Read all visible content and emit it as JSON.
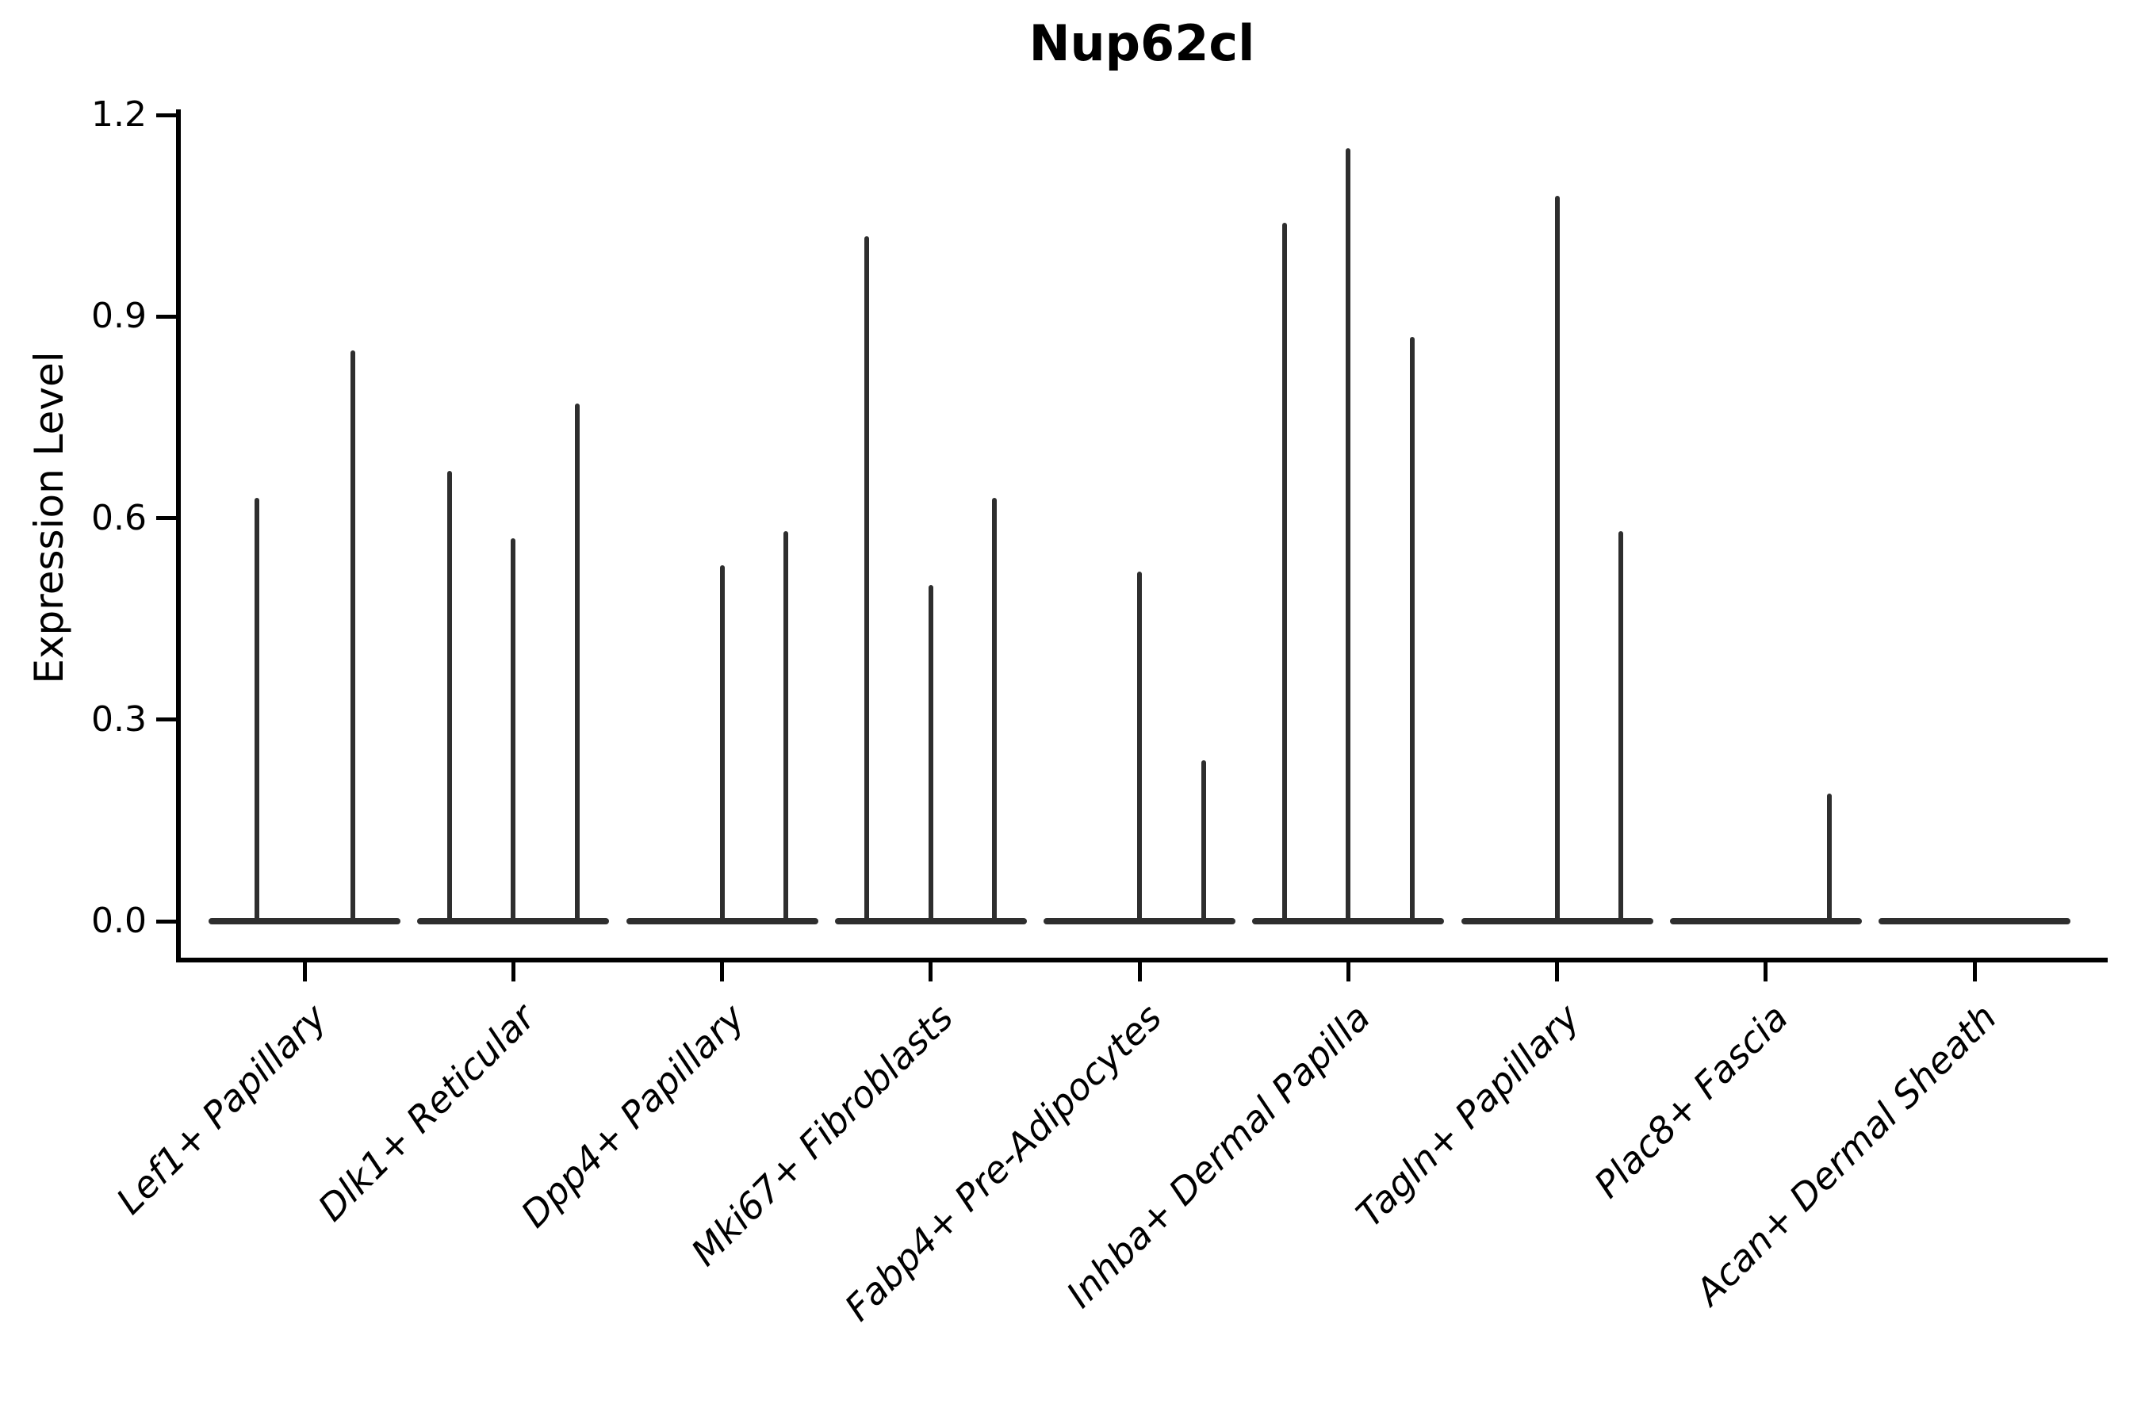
{
  "title": "Nup62cl",
  "axes": {
    "ylabel": "Expression Level",
    "xlabel": ""
  },
  "colors": {
    "axis": "#000000",
    "violin": "#2e2e2e",
    "background": "#ffffff"
  },
  "chart_data": {
    "type": "violin",
    "title": "Nup62cl",
    "ylabel": "Expression Level",
    "xlabel": "",
    "ylim": [
      0,
      1.2
    ],
    "grid": false,
    "legend": null,
    "ytick_labels": [
      "0.0",
      "0.3",
      "0.6",
      "0.9",
      "1.2"
    ],
    "ytick_values": [
      0.0,
      0.3,
      0.6,
      0.9,
      1.2
    ],
    "categories": [
      "Lef1+ Papillary",
      "Dlk1+ Reticular",
      "Dpp4+ Papillary",
      "Mki67+ Fibroblasts",
      "Fabp4+ Pre-Adipocytes",
      "Inhba+ Dermal Papilla",
      "Tagln+ Papillary",
      "Plac8+ Fascia",
      "Acan+ Dermal Sheath"
    ],
    "violins": [
      {
        "category": "Lef1+ Papillary",
        "sub_violin_max_expression": [
          0.63,
          0.85
        ]
      },
      {
        "category": "Dlk1+ Reticular",
        "sub_violin_max_expression": [
          0.67,
          0.57,
          0.77
        ]
      },
      {
        "category": "Dpp4+ Papillary",
        "sub_violin_max_expression": [
          0.0,
          0.53,
          0.58
        ]
      },
      {
        "category": "Mki67+ Fibroblasts",
        "sub_violin_max_expression": [
          1.02,
          0.5,
          0.63
        ]
      },
      {
        "category": "Fabp4+ Pre-Adipocytes",
        "sub_violin_max_expression": [
          0.0,
          0.52,
          0.24
        ]
      },
      {
        "category": "Inhba+ Dermal Papilla",
        "sub_violin_max_expression": [
          1.04,
          1.15,
          0.87
        ]
      },
      {
        "category": "Tagln+ Papillary",
        "sub_violin_max_expression": [
          0.0,
          1.08,
          0.58
        ]
      },
      {
        "category": "Plac8+ Fascia",
        "sub_violin_max_expression": [
          0.0,
          0.0,
          0.19
        ]
      },
      {
        "category": "Acan+ Dermal Sheath",
        "sub_violin_max_expression": [
          0.0,
          0.0,
          0.0
        ]
      }
    ]
  }
}
